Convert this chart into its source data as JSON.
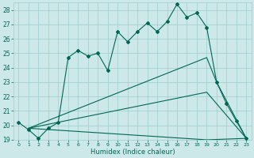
{
  "xlabel": "Humidex (Indice chaleur)",
  "bg_color": "#cce8e8",
  "grid_color": "#9ecece",
  "line_color": "#006655",
  "xlim": [
    -0.5,
    23.5
  ],
  "ylim": [
    19,
    28.5
  ],
  "xticks": [
    0,
    1,
    2,
    3,
    4,
    5,
    6,
    7,
    8,
    9,
    10,
    11,
    12,
    13,
    14,
    15,
    16,
    17,
    18,
    19,
    20,
    21,
    22,
    23
  ],
  "yticks": [
    19,
    20,
    21,
    22,
    23,
    24,
    25,
    26,
    27,
    28
  ],
  "main_line": [
    [
      0,
      20.2
    ],
    [
      1,
      19.7
    ],
    [
      2,
      19.1
    ],
    [
      3,
      19.8
    ],
    [
      4,
      20.2
    ],
    [
      5,
      24.7
    ],
    [
      6,
      25.2
    ],
    [
      7,
      24.8
    ],
    [
      8,
      25.0
    ],
    [
      9,
      23.8
    ],
    [
      10,
      26.5
    ],
    [
      11,
      25.8
    ],
    [
      12,
      26.5
    ],
    [
      13,
      27.1
    ],
    [
      14,
      26.5
    ],
    [
      15,
      27.2
    ],
    [
      16,
      28.4
    ],
    [
      17,
      27.5
    ],
    [
      18,
      27.8
    ],
    [
      19,
      26.8
    ],
    [
      20,
      23.0
    ],
    [
      21,
      21.5
    ],
    [
      22,
      20.3
    ],
    [
      23,
      19.1
    ]
  ],
  "line_upper": [
    [
      1,
      19.8
    ],
    [
      19,
      24.7
    ],
    [
      20,
      23.0
    ],
    [
      23,
      19.1
    ]
  ],
  "line_mid": [
    [
      1,
      19.8
    ],
    [
      19,
      22.3
    ],
    [
      20,
      21.5
    ],
    [
      23,
      19.1
    ]
  ],
  "line_lower": [
    [
      1,
      19.8
    ],
    [
      19,
      19.0
    ],
    [
      23,
      19.1
    ]
  ]
}
